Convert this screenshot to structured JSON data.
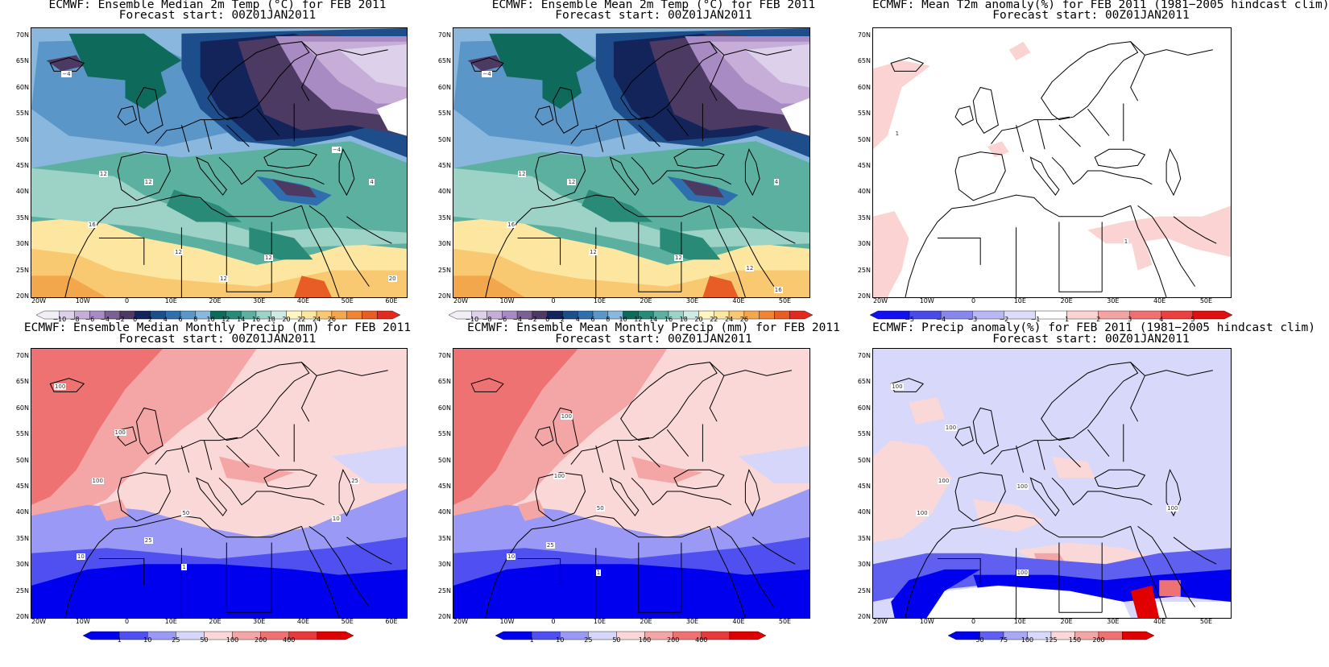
{
  "panels": [
    {
      "id": "p1",
      "title1": "ECMWF: Ensemble Median 2m Temp (°C) for FEB 2011",
      "title2": "Forecast start: 00Z01JAN2011",
      "lons": [
        "20W",
        "10W",
        "0",
        "10E",
        "20E",
        "30E",
        "40E",
        "50E",
        "60E"
      ],
      "legend": [
        "−10",
        "−8",
        "−6",
        "−4",
        "−2",
        "0",
        "2",
        "4",
        "6",
        "8",
        "10",
        "12",
        "14",
        "16",
        "18",
        "20",
        "22",
        "24",
        "26"
      ],
      "contour_labels": [
        "−4",
        "−4",
        "12",
        "12",
        "16",
        "12",
        "12",
        "12",
        "20",
        "4"
      ]
    },
    {
      "id": "p2",
      "title1": "ECMWF: Ensemble Mean 2m Temp (°C) for FEB 2011",
      "title2": "Forecast start: 00Z01JAN2011",
      "lons": [
        "20W",
        "10W",
        "0",
        "10E",
        "20E",
        "30E",
        "40E",
        "50E"
      ],
      "legend": [
        "−10",
        "−8",
        "−6",
        "−4",
        "−2",
        "0",
        "2",
        "4",
        "6",
        "8",
        "10",
        "12",
        "14",
        "16",
        "18",
        "20",
        "22",
        "24",
        "26"
      ],
      "contour_labels": [
        "−4",
        "12",
        "12",
        "16",
        "12",
        "12",
        "12",
        "16",
        "4"
      ]
    },
    {
      "id": "p3",
      "title1": "ECMWF: Mean T2m anomaly(%) for FEB 2011 (1981−2005 hindcast clim)",
      "title2": "Forecast start: 00Z01JAN2011",
      "lons": [
        "20W",
        "10W",
        "0",
        "10E",
        "20E",
        "30E",
        "40E",
        "50E"
      ],
      "legend": [
        "−5",
        "−4",
        "−3",
        "−2",
        "−1",
        "1",
        "2",
        "3",
        "4",
        "5"
      ],
      "contour_labels": [
        "1",
        "1"
      ]
    },
    {
      "id": "p4",
      "title1": "ECMWF: Ensemble Median Monthly Precip (mm) for FEB 2011",
      "title2": "Forecast start: 00Z01JAN2011",
      "lons": [
        "20W",
        "10W",
        "0",
        "10E",
        "20E",
        "30E",
        "40E",
        "50E",
        "60E"
      ],
      "legend": [
        "1",
        "10",
        "25",
        "50",
        "100",
        "200",
        "400"
      ],
      "contour_labels": [
        "100",
        "100",
        "100",
        "50",
        "25",
        "10",
        "1",
        "25",
        "10"
      ]
    },
    {
      "id": "p5",
      "title1": "ECMWF: Ensemble Mean Monthly Precip (mm) for FEB 2011",
      "title2": "Forecast start: 00Z01JAN2011",
      "lons": [
        "20W",
        "10W",
        "0",
        "10E",
        "20E",
        "30E",
        "40E",
        "50E"
      ],
      "legend": [
        "1",
        "10",
        "25",
        "50",
        "100",
        "200",
        "400"
      ],
      "contour_labels": [
        "100",
        "100",
        "50",
        "25",
        "10",
        "1"
      ]
    },
    {
      "id": "p6",
      "title1": "ECMWF: Precip anomaly(%) for FEB 2011 (1981−2005 hindcast clim)",
      "title2": "Forecast start: 00Z01JAN2011",
      "lons": [
        "20W",
        "10W",
        "0",
        "10E",
        "20E",
        "30E",
        "40E",
        "50E"
      ],
      "legend": [
        "50",
        "75",
        "100",
        "125",
        "150",
        "200"
      ],
      "contour_labels": [
        "100",
        "100",
        "100",
        "100",
        "100",
        "100",
        "100"
      ]
    }
  ],
  "lats": [
    "70N",
    "65N",
    "60N",
    "55N",
    "50N",
    "45N",
    "40N",
    "35N",
    "30N",
    "25N",
    "20N"
  ],
  "colors": {
    "temp": [
      "#f2eef7",
      "#ddd0ea",
      "#c6aed9",
      "#a98bc4",
      "#7c6093",
      "#4d3a63",
      "#12245a",
      "#1d4d8a",
      "#2f6fae",
      "#5a96c8",
      "#8ab7dd",
      "#0e6b5b",
      "#2a8a78",
      "#5cb0a0",
      "#9dd3c6",
      "#cdebe2",
      "#fff6c4",
      "#fde7a0",
      "#f8c970",
      "#f3a74c",
      "#ee8533",
      "#e85c26",
      "#e02a20"
    ],
    "tanom": [
      "#1010f0",
      "#4a4ae8",
      "#8888ec",
      "#b8b8f4",
      "#dcdcfa",
      "#ffffff",
      "#fbd3d3",
      "#f4a3a3",
      "#ef7070",
      "#ea4040",
      "#e01010"
    ],
    "precip": [
      "#0000ee",
      "#5050f0",
      "#9a9af6",
      "#d6d6fb",
      "#fbd8d8",
      "#f4a6a6",
      "#ef7272",
      "#e83a3a",
      "#e00000"
    ],
    "panom": [
      "#0000ee",
      "#6060f0",
      "#a8a8f4",
      "#d8d8fb",
      "#fbd8d8",
      "#f4a6a6",
      "#ef7272",
      "#e00000"
    ]
  }
}
